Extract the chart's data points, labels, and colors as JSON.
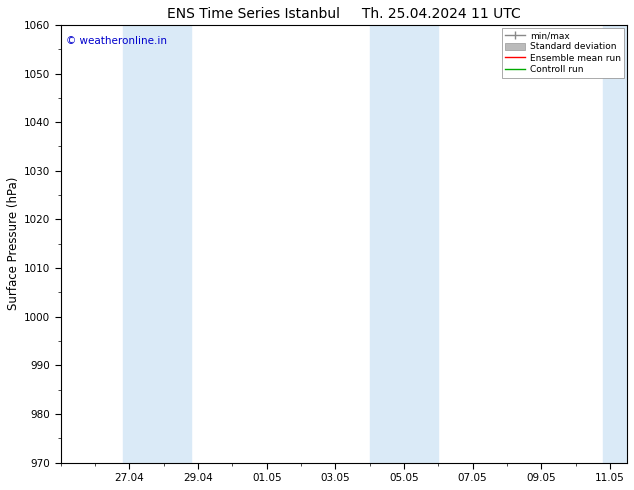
{
  "title_left": "ENS Time Series Istanbul",
  "title_right": "Th. 25.04.2024 11 UTC",
  "ylabel": "Surface Pressure (hPa)",
  "ylim": [
    970,
    1060
  ],
  "yticks": [
    970,
    980,
    990,
    1000,
    1010,
    1020,
    1030,
    1040,
    1050,
    1060
  ],
  "xtick_labels": [
    "27.04",
    "29.04",
    "01.05",
    "03.05",
    "05.05",
    "07.05",
    "09.05",
    "11.05"
  ],
  "band_color": "#daeaf7",
  "background_color": "#ffffff",
  "watermark": "© weatheronline.in",
  "watermark_color": "#0000cc",
  "legend_items": [
    {
      "label": "min/max",
      "color": "#888888",
      "lw": 1.0
    },
    {
      "label": "Standard deviation",
      "color": "#bbbbbb",
      "lw": 5
    },
    {
      "label": "Ensemble mean run",
      "color": "#ff0000",
      "lw": 1.0
    },
    {
      "label": "Controll run",
      "color": "#00aa00",
      "lw": 1.0
    }
  ],
  "title_fontsize": 10,
  "tick_fontsize": 7.5,
  "ylabel_fontsize": 8.5
}
